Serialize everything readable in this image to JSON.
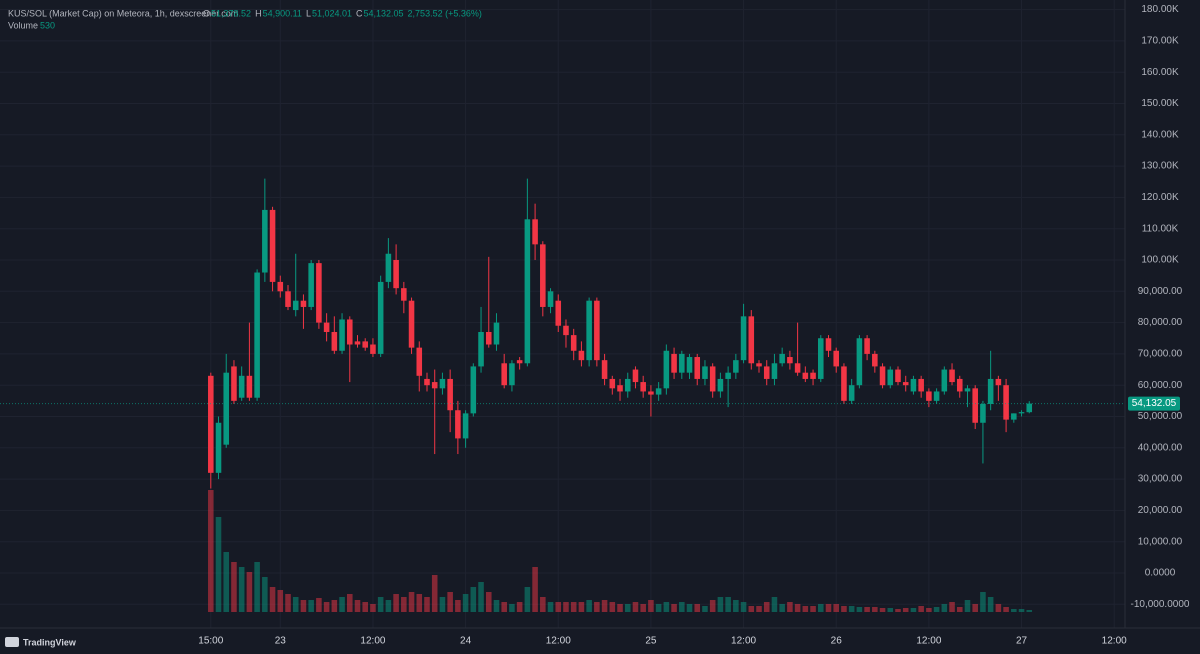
{
  "chart_data": {
    "type": "candlestick",
    "header": {
      "title": "KUS/SOL (Market Cap) on Meteora, 1h, dexscreener.com",
      "ohlc": [
        {
          "key": "O",
          "value": "51,378.52"
        },
        {
          "key": "H",
          "value": "54,900.11"
        },
        {
          "key": "L",
          "value": "51,024.01"
        },
        {
          "key": "C",
          "value": "54,132.05"
        }
      ],
      "change": "2,753.52 (+5.36%)",
      "volume_label": "Volume",
      "volume_value": "530"
    },
    "brand": "TradingView",
    "up_color": "#089981",
    "down_color": "#f23645",
    "grid": true,
    "price_label": {
      "value": 54132.05,
      "label": "54,132.05"
    },
    "xlim": [
      -27.3,
      118.4
    ],
    "xticks": [
      {
        "value": 0,
        "label": "15:00"
      },
      {
        "value": 9,
        "label": "23"
      },
      {
        "value": 21,
        "label": "12:00"
      },
      {
        "value": 33,
        "label": "24"
      },
      {
        "value": 45,
        "label": "12:00"
      },
      {
        "value": 57,
        "label": "25"
      },
      {
        "value": 69,
        "label": "12:00"
      },
      {
        "value": 81,
        "label": "26"
      },
      {
        "value": 93,
        "label": "12:00"
      },
      {
        "value": 105,
        "label": "27"
      },
      {
        "value": 117,
        "label": "12:00"
      }
    ],
    "ylim": [
      -17572,
      183067
    ],
    "yticks": [
      {
        "value": 180000,
        "label": "180.00K"
      },
      {
        "value": 170000,
        "label": "170.00K"
      },
      {
        "value": 160000,
        "label": "160.00K"
      },
      {
        "value": 150000,
        "label": "150.00K"
      },
      {
        "value": 140000,
        "label": "140.00K"
      },
      {
        "value": 130000,
        "label": "130.00K"
      },
      {
        "value": 120000,
        "label": "120.00K"
      },
      {
        "value": 110000,
        "label": "110.00K"
      },
      {
        "value": 100000,
        "label": "100.00K"
      },
      {
        "value": 90000,
        "label": "90,000.00"
      },
      {
        "value": 80000,
        "label": "80,000.00"
      },
      {
        "value": 70000,
        "label": "70,000.00"
      },
      {
        "value": 60000,
        "label": "60,000.00"
      },
      {
        "value": 50000,
        "label": "50,000.00"
      },
      {
        "value": 40000,
        "label": "40,000.00"
      },
      {
        "value": 30000,
        "label": "30,000.00"
      },
      {
        "value": 20000,
        "label": "20,000.00"
      },
      {
        "value": 10000,
        "label": "10,000.00"
      },
      {
        "value": 0,
        "label": "0.0000"
      },
      {
        "value": -10000,
        "label": "-10,000.0000"
      }
    ],
    "open": [
      63000,
      32000,
      41000,
      66000,
      56000,
      63000,
      56000,
      96000,
      116000,
      93000,
      90000,
      84000,
      87000,
      85000,
      99000,
      80000,
      77000,
      71000,
      81000,
      74000,
      74000,
      73000,
      70000,
      93000,
      100000,
      91000,
      87000,
      72000,
      62000,
      61000,
      59000,
      62000,
      52000,
      43000,
      51000,
      66000,
      77000,
      73000,
      67000,
      60000,
      68000,
      67000,
      113000,
      105000,
      85000,
      87000,
      79000,
      76000,
      71000,
      68000,
      87000,
      68000,
      62000,
      60000,
      58000,
      65000,
      61000,
      58000,
      57000,
      59000,
      70000,
      64000,
      64000,
      69000,
      62000,
      66000,
      58000,
      62000,
      64000,
      68000,
      82000,
      67000,
      66000,
      62000,
      67000,
      69000,
      67000,
      64000,
      64000,
      62000,
      75000,
      71000,
      66000,
      55000,
      60000,
      75000,
      70000,
      66000,
      60000,
      65000,
      61000,
      58000,
      62000,
      58000,
      55000,
      58000,
      65000,
      62000,
      58000,
      59000,
      48000,
      54000,
      62000,
      60000,
      49000,
      51000,
      51378.52
    ],
    "high": [
      64000,
      50000,
      70000,
      68000,
      66000,
      80000,
      97000,
      126000,
      117000,
      95000,
      92000,
      102000,
      89000,
      100000,
      100000,
      83000,
      82000,
      83000,
      82000,
      76000,
      75000,
      75000,
      95000,
      107000,
      105000,
      93000,
      88000,
      74000,
      64000,
      65000,
      64000,
      65000,
      55000,
      52000,
      67000,
      85000,
      101000,
      83000,
      70000,
      68000,
      69000,
      126000,
      118000,
      106000,
      91000,
      89000,
      81000,
      78000,
      74000,
      88000,
      88000,
      70000,
      63000,
      62000,
      64000,
      66000,
      63000,
      60000,
      61000,
      73000,
      72000,
      71000,
      70000,
      70000,
      68000,
      67000,
      64000,
      66000,
      70000,
      86000,
      84000,
      68000,
      68000,
      70000,
      72000,
      71000,
      80000,
      66000,
      65000,
      76000,
      76000,
      72000,
      67000,
      62000,
      76000,
      76000,
      71000,
      67000,
      66000,
      66000,
      63000,
      63000,
      63000,
      59000,
      59000,
      66000,
      67000,
      63000,
      60000,
      60000,
      55000,
      71000,
      63000,
      62000,
      51000,
      52000,
      54900.11
    ],
    "low": [
      27000,
      30000,
      40000,
      54000,
      55000,
      55000,
      55000,
      93000,
      90000,
      88000,
      84000,
      82000,
      78000,
      84000,
      78000,
      74000,
      70000,
      70000,
      61000,
      72000,
      71000,
      69000,
      69000,
      91000,
      89000,
      83000,
      70000,
      58000,
      58000,
      38000,
      57000,
      45000,
      38000,
      40000,
      50000,
      64000,
      72000,
      71000,
      59000,
      58000,
      65000,
      66000,
      100000,
      82000,
      83000,
      77000,
      72000,
      68000,
      66000,
      66000,
      66000,
      60000,
      57000,
      55000,
      56000,
      59000,
      56000,
      50000,
      55000,
      57000,
      62000,
      62000,
      62000,
      60000,
      60000,
      56000,
      56000,
      53000,
      62000,
      67000,
      65000,
      64000,
      60000,
      60000,
      66000,
      65000,
      63000,
      61000,
      60000,
      61000,
      69000,
      64000,
      54000,
      54000,
      59000,
      68000,
      64000,
      59000,
      59000,
      60000,
      58000,
      57000,
      56000,
      53000,
      54000,
      57000,
      60000,
      56000,
      53000,
      46000,
      35000,
      52000,
      55000,
      45000,
      48000,
      50000,
      51024.01
    ],
    "close": [
      32000,
      48000,
      64000,
      55000,
      63000,
      56000,
      96000,
      116000,
      93000,
      90000,
      85000,
      87000,
      85000,
      99000,
      80000,
      77000,
      71000,
      81000,
      73000,
      73000,
      72000,
      70000,
      93000,
      102000,
      91000,
      87000,
      72000,
      63000,
      60000,
      59000,
      62000,
      52000,
      43000,
      51000,
      66000,
      77000,
      73000,
      80000,
      60000,
      67000,
      67000,
      113000,
      105000,
      85000,
      90000,
      79000,
      76000,
      71000,
      68000,
      87000,
      68000,
      62000,
      59000,
      58000,
      62000,
      61000,
      58000,
      57000,
      59000,
      71000,
      64000,
      70000,
      69000,
      62000,
      66000,
      58000,
      62000,
      64000,
      68000,
      82000,
      67000,
      66000,
      62000,
      67000,
      70000,
      67000,
      64000,
      62000,
      62000,
      75000,
      71000,
      66000,
      55000,
      60000,
      75000,
      70000,
      66000,
      60000,
      65000,
      61000,
      60000,
      62000,
      58000,
      55000,
      58000,
      65000,
      61000,
      58000,
      59000,
      48000,
      54000,
      62000,
      60000,
      49000,
      51000,
      51400,
      54132.05
    ],
    "volume": [
      32330,
      25175,
      15900,
      13250,
      11925,
      10600,
      13250,
      9275,
      6625,
      5830,
      4770,
      3975,
      3180,
      3180,
      3710,
      2650,
      3180,
      3975,
      4770,
      3180,
      2650,
      2120,
      3975,
      3180,
      4770,
      3975,
      5300,
      4770,
      3975,
      9805,
      3975,
      5300,
      3180,
      4770,
      6625,
      7950,
      5300,
      3180,
      2650,
      2120,
      2650,
      6625,
      11925,
      3975,
      2650,
      2650,
      2650,
      2650,
      2650,
      3180,
      2650,
      3180,
      2650,
      2120,
      2120,
      2650,
      2120,
      3180,
      2120,
      2650,
      2120,
      2650,
      2120,
      2120,
      1590,
      3180,
      3975,
      3975,
      3180,
      2650,
      1590,
      1590,
      2650,
      3975,
      2120,
      2650,
      2120,
      1590,
      1590,
      2120,
      2120,
      2120,
      1590,
      1590,
      1325,
      1325,
      1325,
      1060,
      1060,
      795,
      1060,
      1060,
      1590,
      1060,
      1325,
      2120,
      2650,
      1325,
      3180,
      2120,
      5300,
      3975,
      2120,
      1325,
      795,
      795,
      530
    ]
  }
}
